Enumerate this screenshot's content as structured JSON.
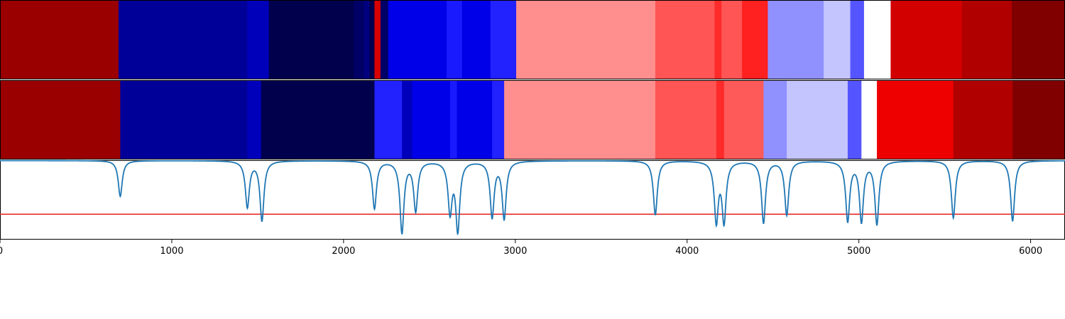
{
  "chart_data": {
    "type": "heatmap",
    "xlim": [
      0,
      6200
    ],
    "grid": false,
    "legend": "none",
    "x_ticks": [
      0,
      1000,
      2000,
      3000,
      4000,
      5000,
      6000
    ],
    "x_tick_labels": [
      "0",
      "1000",
      "2000",
      "3000",
      "4000",
      "5000",
      "6000"
    ],
    "threshold_color": "#e8302a",
    "signal_color": "#1f77b4",
    "rows": [
      {
        "segments": [
          {
            "x0": 0,
            "x1": 690,
            "color": "#9a0000"
          },
          {
            "x0": 690,
            "x1": 1440,
            "color": "#000099"
          },
          {
            "x0": 1440,
            "x1": 1565,
            "color": "#0000bb"
          },
          {
            "x0": 1565,
            "x1": 2060,
            "color": "#00004d"
          },
          {
            "x0": 2060,
            "x1": 2120,
            "color": "#000066"
          },
          {
            "x0": 2120,
            "x1": 2150,
            "color": "#000080"
          },
          {
            "x0": 2150,
            "x1": 2180,
            "color": "#00004d"
          },
          {
            "x0": 2180,
            "x1": 2215,
            "color": "#d80000"
          },
          {
            "x0": 2215,
            "x1": 2260,
            "color": "#000066"
          },
          {
            "x0": 2260,
            "x1": 2600,
            "color": "#0000e8"
          },
          {
            "x0": 2600,
            "x1": 2690,
            "color": "#1a1aff"
          },
          {
            "x0": 2690,
            "x1": 2855,
            "color": "#0000e8"
          },
          {
            "x0": 2855,
            "x1": 3005,
            "color": "#2222ff"
          },
          {
            "x0": 3005,
            "x1": 3815,
            "color": "#ff8e8e"
          },
          {
            "x0": 3815,
            "x1": 4160,
            "color": "#ff5555"
          },
          {
            "x0": 4160,
            "x1": 4200,
            "color": "#ff2a2a"
          },
          {
            "x0": 4200,
            "x1": 4320,
            "color": "#ff5555"
          },
          {
            "x0": 4320,
            "x1": 4470,
            "color": "#ff2020"
          },
          {
            "x0": 4470,
            "x1": 4795,
            "color": "#9090ff"
          },
          {
            "x0": 4795,
            "x1": 4950,
            "color": "#c4c4ff"
          },
          {
            "x0": 4950,
            "x1": 5030,
            "color": "#5555ff"
          },
          {
            "x0": 5030,
            "x1": 5185,
            "color": "#ffffff"
          },
          {
            "x0": 5185,
            "x1": 5600,
            "color": "#d30000"
          },
          {
            "x0": 5600,
            "x1": 5890,
            "color": "#b00000"
          },
          {
            "x0": 5890,
            "x1": 6200,
            "color": "#800000"
          }
        ]
      },
      {
        "segments": [
          {
            "x0": 0,
            "x1": 700,
            "color": "#9a0000"
          },
          {
            "x0": 700,
            "x1": 1440,
            "color": "#000099"
          },
          {
            "x0": 1440,
            "x1": 1520,
            "color": "#0000bb"
          },
          {
            "x0": 1520,
            "x1": 2180,
            "color": "#00004d"
          },
          {
            "x0": 2180,
            "x1": 2340,
            "color": "#2222ff"
          },
          {
            "x0": 2340,
            "x1": 2400,
            "color": "#0000bb"
          },
          {
            "x0": 2400,
            "x1": 2620,
            "color": "#0000e8"
          },
          {
            "x0": 2620,
            "x1": 2660,
            "color": "#1a1aff"
          },
          {
            "x0": 2660,
            "x1": 2865,
            "color": "#0000e8"
          },
          {
            "x0": 2865,
            "x1": 2935,
            "color": "#2222ff"
          },
          {
            "x0": 2935,
            "x1": 3815,
            "color": "#ff8e8e"
          },
          {
            "x0": 3815,
            "x1": 4170,
            "color": "#ff5555"
          },
          {
            "x0": 4170,
            "x1": 4215,
            "color": "#ff2a2a"
          },
          {
            "x0": 4215,
            "x1": 4445,
            "color": "#ff5a5a"
          },
          {
            "x0": 4445,
            "x1": 4580,
            "color": "#9090ff"
          },
          {
            "x0": 4580,
            "x1": 4935,
            "color": "#c4c4ff"
          },
          {
            "x0": 4935,
            "x1": 5015,
            "color": "#5555ff"
          },
          {
            "x0": 5015,
            "x1": 5105,
            "color": "#ffffff"
          },
          {
            "x0": 5105,
            "x1": 5550,
            "color": "#ee0000"
          },
          {
            "x0": 5550,
            "x1": 5895,
            "color": "#b00000"
          },
          {
            "x0": 5895,
            "x1": 6200,
            "color": "#800000"
          }
        ]
      }
    ],
    "signal_dips": [
      {
        "x": 700,
        "depth": 0.45
      },
      {
        "x": 1440,
        "depth": 0.58
      },
      {
        "x": 1525,
        "depth": 0.75
      },
      {
        "x": 2180,
        "depth": 0.6
      },
      {
        "x": 2340,
        "depth": 0.9
      },
      {
        "x": 2420,
        "depth": 0.62
      },
      {
        "x": 2620,
        "depth": 0.63
      },
      {
        "x": 2665,
        "depth": 0.86
      },
      {
        "x": 2865,
        "depth": 0.7
      },
      {
        "x": 2935,
        "depth": 0.72
      },
      {
        "x": 3815,
        "depth": 0.68
      },
      {
        "x": 4170,
        "depth": 0.75
      },
      {
        "x": 4215,
        "depth": 0.75
      },
      {
        "x": 4445,
        "depth": 0.78
      },
      {
        "x": 4580,
        "depth": 0.68
      },
      {
        "x": 4935,
        "depth": 0.75
      },
      {
        "x": 5015,
        "depth": 0.75
      },
      {
        "x": 5105,
        "depth": 0.79
      },
      {
        "x": 5550,
        "depth": 0.72
      },
      {
        "x": 5895,
        "depth": 0.76
      }
    ],
    "threshold_level": 0.68
  }
}
